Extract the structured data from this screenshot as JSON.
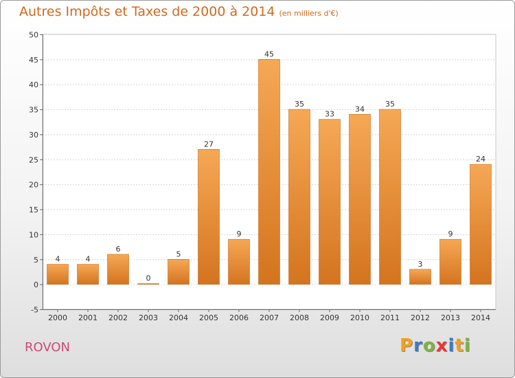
{
  "title": "Autres Impôts et Taxes de 2000 à 2014",
  "subtitle": "(en milliers d'€)",
  "place": "ROVON",
  "logo": {
    "text": "Proxiti",
    "letter_colors": [
      "#f2a01d",
      "#3b7dc4",
      "#7cb342",
      "#e53935",
      "#3b7dc4",
      "#f2a01d",
      "#7cb342"
    ]
  },
  "colors": {
    "bar_light": "#f6a855",
    "bar_dark": "#d4741f",
    "title": "#d2691e",
    "place": "#cc4a77"
  },
  "chart_data": {
    "type": "bar",
    "categories": [
      "2000",
      "2001",
      "2002",
      "2003",
      "2004",
      "2005",
      "2006",
      "2007",
      "2008",
      "2009",
      "2010",
      "2011",
      "2012",
      "2013",
      "2014"
    ],
    "values": [
      4,
      4,
      6,
      0,
      5,
      27,
      9,
      45,
      35,
      33,
      34,
      35,
      3,
      9,
      24
    ],
    "title": "Autres Impôts et Taxes de 2000 à 2014",
    "subtitle": "(en milliers d'€)",
    "ylim": [
      -5,
      50
    ],
    "yticks": [
      -5,
      0,
      5,
      10,
      15,
      20,
      25,
      30,
      35,
      40,
      45,
      50
    ],
    "grid": true,
    "data_labels": true
  }
}
